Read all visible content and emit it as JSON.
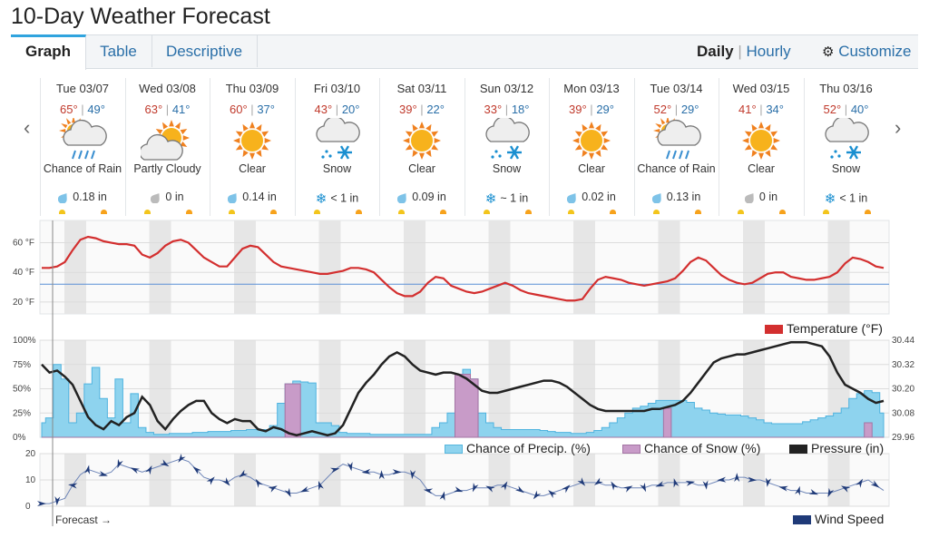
{
  "page": {
    "title": "10-Day Weather Forecast"
  },
  "tabs": [
    {
      "label": "Graph"
    },
    {
      "label": "Table"
    },
    {
      "label": "Descriptive"
    }
  ],
  "nav": {
    "daily": "Daily",
    "separator": "|",
    "hourly": "Hourly",
    "customize": "Customize",
    "prev": "‹",
    "next": "›"
  },
  "days": [
    {
      "date": "Tue 03/07",
      "hi": "65°",
      "lo": "49°",
      "icon": "rain-icon",
      "cond": "Chance of Rain",
      "precip": "0.18 in",
      "ptype": "rain"
    },
    {
      "date": "Wed 03/08",
      "hi": "63°",
      "lo": "41°",
      "icon": "partly-cloudy-icon",
      "cond": "Partly Cloudy",
      "precip": "0 in",
      "ptype": "none"
    },
    {
      "date": "Thu 03/09",
      "hi": "60°",
      "lo": "37°",
      "icon": "sun-icon",
      "cond": "Clear",
      "precip": "0.14 in",
      "ptype": "rain"
    },
    {
      "date": "Fri 03/10",
      "hi": "43°",
      "lo": "20°",
      "icon": "snow-icon",
      "cond": "Snow",
      "precip": "< 1 in",
      "ptype": "snow"
    },
    {
      "date": "Sat 03/11",
      "hi": "39°",
      "lo": "22°",
      "icon": "sun-icon",
      "cond": "Clear",
      "precip": "0.09 in",
      "ptype": "rain"
    },
    {
      "date": "Sun 03/12",
      "hi": "33°",
      "lo": "18°",
      "icon": "snow-icon",
      "cond": "Snow",
      "precip": "~ 1 in",
      "ptype": "snow"
    },
    {
      "date": "Mon 03/13",
      "hi": "39°",
      "lo": "29°",
      "icon": "sun-icon",
      "cond": "Clear",
      "precip": "0.02 in",
      "ptype": "rain"
    },
    {
      "date": "Tue 03/14",
      "hi": "52°",
      "lo": "29°",
      "icon": "rain-icon",
      "cond": "Chance of Rain",
      "precip": "0.13 in",
      "ptype": "rain"
    },
    {
      "date": "Wed 03/15",
      "hi": "41°",
      "lo": "34°",
      "icon": "sun-icon",
      "cond": "Clear",
      "precip": "0 in",
      "ptype": "none"
    },
    {
      "date": "Thu 03/16",
      "hi": "52°",
      "lo": "40°",
      "icon": "snow-icon",
      "cond": "Snow",
      "precip": "< 1 in",
      "ptype": "snow"
    }
  ],
  "colors": {
    "temp": "#d32f2f",
    "precip": "#8ed3ee",
    "snow": "#c89bc8",
    "pressure": "#222222",
    "wind": "#1f3a78",
    "sun": "#f7a21b",
    "moon": "#f3c51c",
    "refline": "#5b8fd6",
    "hi": "#c0392b",
    "lo": "#2a6fa8"
  },
  "legends": {
    "temperature": "Temperature (°F)",
    "precip": "Chance of Precip. (%)",
    "snow": "Chance of Snow (%)",
    "pressure": "Pressure (in)",
    "wind": "Wind Speed"
  },
  "forecast_label": "Forecast →",
  "chart_data": [
    {
      "type": "line",
      "name": "temperature",
      "ylabel_ticks": [
        "60 °F",
        "40 °F",
        "20 °F"
      ],
      "ylim": [
        12,
        75
      ],
      "reference_line": 32,
      "series": [
        {
          "name": "Temperature (°F)",
          "values": [
            43,
            43,
            44,
            47,
            55,
            62,
            64,
            63,
            61,
            60,
            59,
            59,
            58,
            52,
            50,
            53,
            58,
            61,
            62,
            60,
            55,
            50,
            47,
            44,
            44,
            50,
            56,
            58,
            57,
            52,
            47,
            44,
            43,
            42,
            41,
            40,
            39,
            39,
            40,
            41,
            43,
            43,
            42,
            40,
            35,
            30,
            26,
            24,
            24,
            27,
            33,
            37,
            36,
            31,
            29,
            27,
            26,
            27,
            29,
            31,
            33,
            31,
            28,
            26,
            25,
            24,
            23,
            22,
            21,
            21,
            22,
            29,
            35,
            37,
            36,
            35,
            33,
            32,
            31,
            32,
            33,
            34,
            36,
            41,
            47,
            50,
            48,
            43,
            38,
            35,
            33,
            32,
            33,
            36,
            39,
            40,
            40,
            37,
            36,
            35,
            35,
            36,
            37,
            40,
            46,
            50,
            49,
            47,
            44,
            43
          ]
        }
      ]
    },
    {
      "type": "area",
      "name": "precipitation-pressure",
      "y_left_ticks": [
        "100%",
        "75%",
        "50%",
        "25%",
        "0%"
      ],
      "y_right_ticks": [
        "30.44",
        "30.32",
        "30.20",
        "30.08",
        "29.96"
      ],
      "ylim_left": [
        0,
        100
      ],
      "ylim_right": [
        29.96,
        30.44
      ],
      "series": [
        {
          "name": "Chance of Precip. (%)",
          "values": [
            15,
            20,
            75,
            60,
            15,
            25,
            55,
            72,
            40,
            20,
            60,
            15,
            45,
            10,
            5,
            3,
            3,
            4,
            4,
            4,
            5,
            5,
            6,
            6,
            6,
            7,
            7,
            8,
            8,
            8,
            12,
            35,
            55,
            58,
            57,
            56,
            15,
            15,
            12,
            5,
            4,
            4,
            4,
            3,
            3,
            3,
            3,
            3,
            3,
            3,
            3,
            10,
            15,
            25,
            55,
            70,
            60,
            25,
            15,
            10,
            8,
            8,
            8,
            8,
            8,
            7,
            6,
            5,
            5,
            4,
            4,
            5,
            7,
            10,
            15,
            20,
            25,
            30,
            32,
            35,
            38,
            38,
            38,
            38,
            36,
            30,
            28,
            25,
            24,
            23,
            23,
            22,
            20,
            18,
            15,
            14,
            14,
            14,
            14,
            16,
            18,
            20,
            22,
            25,
            30,
            40,
            45,
            48,
            46,
            25
          ]
        },
        {
          "name": "Chance of Snow (%)",
          "values": [
            0,
            0,
            0,
            0,
            0,
            0,
            0,
            0,
            0,
            0,
            0,
            0,
            0,
            0,
            0,
            0,
            0,
            0,
            0,
            0,
            0,
            0,
            0,
            0,
            0,
            0,
            0,
            0,
            0,
            0,
            0,
            0,
            55,
            55,
            0,
            0,
            0,
            0,
            0,
            0,
            0,
            0,
            0,
            0,
            0,
            0,
            0,
            0,
            0,
            0,
            0,
            0,
            0,
            0,
            65,
            65,
            60,
            0,
            0,
            0,
            0,
            0,
            0,
            0,
            0,
            0,
            0,
            0,
            0,
            0,
            0,
            0,
            0,
            0,
            0,
            0,
            0,
            0,
            0,
            0,
            0,
            30,
            0,
            0,
            0,
            0,
            0,
            0,
            0,
            0,
            0,
            0,
            0,
            0,
            0,
            0,
            0,
            0,
            0,
            0,
            0,
            0,
            0,
            0,
            0,
            0,
            0,
            15,
            0,
            0
          ]
        },
        {
          "name": "Pressure (in)",
          "values": [
            30.32,
            30.28,
            30.29,
            30.26,
            30.22,
            30.14,
            30.06,
            30.02,
            30.0,
            30.04,
            30.02,
            30.06,
            30.08,
            30.16,
            30.12,
            30.04,
            30.0,
            30.05,
            30.09,
            30.12,
            30.14,
            30.14,
            30.08,
            30.05,
            30.03,
            30.05,
            30.04,
            30.04,
            30.0,
            29.99,
            30.01,
            30.0,
            29.98,
            29.97,
            29.98,
            29.99,
            29.98,
            29.97,
            29.98,
            30.02,
            30.1,
            30.18,
            30.23,
            30.27,
            30.32,
            30.36,
            30.38,
            30.36,
            30.32,
            30.29,
            30.28,
            30.27,
            30.28,
            30.28,
            30.27,
            30.25,
            30.22,
            30.19,
            30.18,
            30.18,
            30.19,
            30.2,
            30.21,
            30.22,
            30.23,
            30.24,
            30.24,
            30.23,
            30.21,
            30.18,
            30.15,
            30.12,
            30.1,
            30.09,
            30.09,
            30.09,
            30.09,
            30.09,
            30.09,
            30.1,
            30.1,
            30.11,
            30.12,
            30.14,
            30.18,
            30.23,
            30.28,
            30.33,
            30.35,
            30.36,
            30.37,
            30.37,
            30.38,
            30.39,
            30.4,
            30.41,
            30.42,
            30.43,
            30.43,
            30.43,
            30.42,
            30.41,
            30.36,
            30.28,
            30.22,
            30.2,
            30.18,
            30.15,
            30.13,
            30.14
          ]
        }
      ]
    },
    {
      "type": "line",
      "name": "wind",
      "ylabel_ticks": [
        "20",
        "10",
        "0"
      ],
      "ylim": [
        0,
        20
      ],
      "series": [
        {
          "name": "Wind Speed",
          "values": [
            1,
            1,
            2,
            3,
            8,
            12,
            14,
            13,
            12,
            13,
            16,
            15,
            14,
            13,
            14,
            15,
            16,
            17,
            18,
            17,
            14,
            11,
            10,
            10,
            9,
            11,
            12,
            11,
            9,
            8,
            7,
            6,
            5,
            5,
            6,
            7,
            8,
            11,
            14,
            16,
            15,
            14,
            13,
            13,
            12,
            12,
            13,
            13,
            12,
            10,
            6,
            4,
            4,
            5,
            6,
            6,
            7,
            7,
            7,
            8,
            8,
            7,
            6,
            5,
            4,
            4,
            5,
            6,
            7,
            8,
            9,
            9,
            9,
            8,
            8,
            7,
            7,
            7,
            7,
            8,
            8,
            9,
            9,
            9,
            9,
            8,
            8,
            9,
            10,
            10,
            11,
            11,
            10,
            10,
            9,
            8,
            7,
            6,
            6,
            5,
            5,
            5,
            5,
            6,
            7,
            8,
            9,
            10,
            8,
            6
          ]
        }
      ]
    }
  ]
}
